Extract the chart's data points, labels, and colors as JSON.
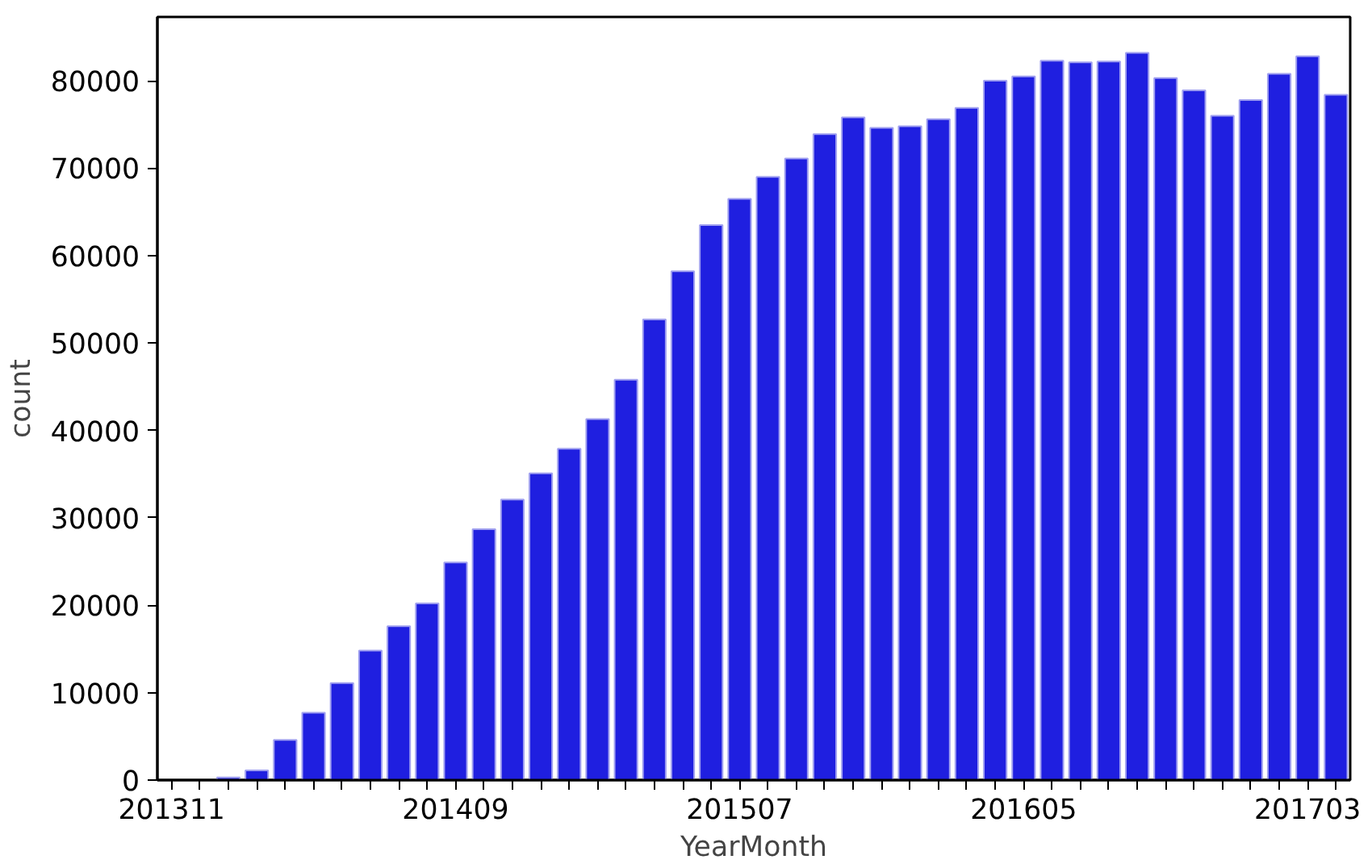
{
  "chart_data": {
    "type": "bar",
    "xlabel": "YearMonth",
    "ylabel": "count",
    "categories": [
      "201311",
      null,
      null,
      null,
      null,
      null,
      null,
      null,
      null,
      null,
      "201409",
      null,
      null,
      null,
      null,
      null,
      null,
      null,
      null,
      null,
      "201507",
      null,
      null,
      null,
      null,
      null,
      null,
      null,
      null,
      null,
      "201605",
      null,
      null,
      null,
      null,
      null,
      null,
      null,
      null,
      null,
      "201703",
      null
    ],
    "values": [
      null,
      null,
      300,
      1100,
      4600,
      7700,
      11100,
      14800,
      17600,
      20200,
      24900,
      28700,
      32100,
      35100,
      37900,
      41300,
      45800,
      52700,
      58200,
      63500,
      66500,
      69000,
      71100,
      73900,
      75800,
      74600,
      74800,
      75600,
      76900,
      80000,
      80500,
      82300,
      82100,
      82200,
      83200,
      80300,
      78900,
      76000,
      77800,
      80800,
      82800,
      78400
    ],
    "color": "#1f1fe0",
    "ylim": [
      0,
      87300
    ],
    "yticks": [
      0,
      10000,
      20000,
      30000,
      40000,
      50000,
      60000,
      70000,
      80000
    ],
    "grid": false
  }
}
